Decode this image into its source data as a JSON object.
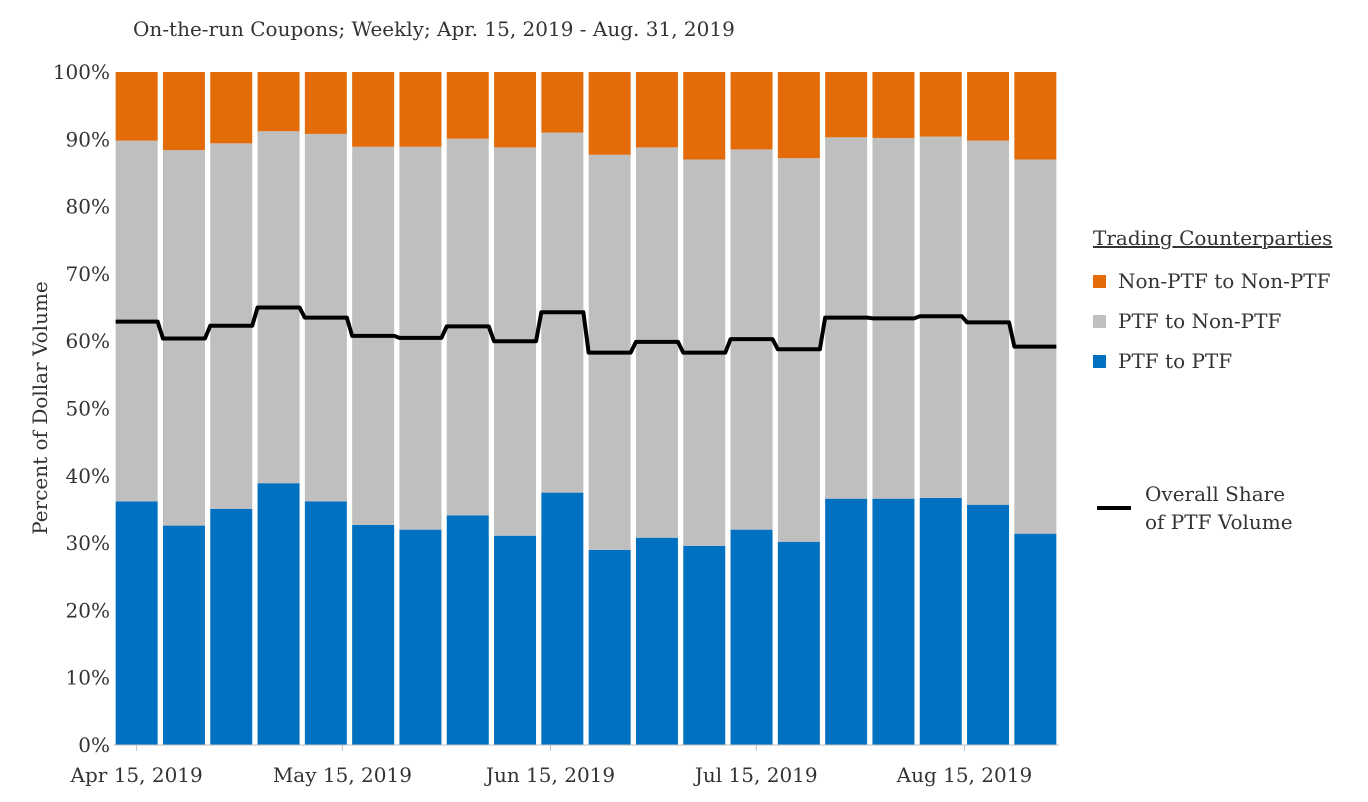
{
  "chart_data": {
    "type": "bar",
    "stacked": true,
    "subtitle": "On-the-run Coupons; Weekly; Apr. 15, 2019 - Aug. 31, 2019",
    "ylabel": "Percent of Dollar Volume",
    "xlabel": "",
    "ylim": [
      0,
      100
    ],
    "y_ticks": [
      "0%",
      "10%",
      "20%",
      "30%",
      "40%",
      "50%",
      "60%",
      "70%",
      "80%",
      "90%",
      "100%"
    ],
    "x_tick_labels": [
      {
        "label": "Apr 15, 2019",
        "at": 0
      },
      {
        "label": "May 15, 2019",
        "at": 4.35
      },
      {
        "label": "Jun 15, 2019",
        "at": 8.75
      },
      {
        "label": "Jul 15, 2019",
        "at": 13.1
      },
      {
        "label": "Aug 15, 2019",
        "at": 17.5
      }
    ],
    "categories": [
      "2019-04-15",
      "2019-04-22",
      "2019-04-29",
      "2019-05-06",
      "2019-05-13",
      "2019-05-20",
      "2019-05-27",
      "2019-06-03",
      "2019-06-10",
      "2019-06-17",
      "2019-06-24",
      "2019-07-01",
      "2019-07-08",
      "2019-07-15",
      "2019-07-22",
      "2019-07-29",
      "2019-08-05",
      "2019-08-12",
      "2019-08-19",
      "2019-08-26"
    ],
    "series": [
      {
        "name": "PTF to PTF",
        "color": "#0070c0",
        "values": [
          36.2,
          32.6,
          35.1,
          38.9,
          36.2,
          32.7,
          32.0,
          34.1,
          31.1,
          37.5,
          29.0,
          30.8,
          29.6,
          32.0,
          30.2,
          36.6,
          36.6,
          36.7,
          35.7,
          31.4
        ]
      },
      {
        "name": "PTF to Non-PTF",
        "color": "#bfbfbf",
        "values": [
          53.6,
          55.8,
          54.3,
          52.3,
          54.6,
          56.2,
          56.9,
          56.0,
          57.7,
          53.5,
          58.7,
          58.0,
          57.4,
          56.5,
          57.0,
          53.7,
          53.6,
          53.7,
          54.1,
          55.6
        ]
      },
      {
        "name": "Non-PTF to Non-PTF",
        "color": "#e36c09",
        "values": [
          10.2,
          11.6,
          10.6,
          8.8,
          9.2,
          11.1,
          11.1,
          9.9,
          11.2,
          9.0,
          12.3,
          11.2,
          13.0,
          11.5,
          12.8,
          9.7,
          9.8,
          9.6,
          10.2,
          13.0
        ]
      }
    ],
    "line_series": {
      "name": "Overall Share of PTF Volume",
      "color": "#000000",
      "values": [
        62.9,
        60.4,
        62.3,
        65.0,
        63.5,
        60.8,
        60.5,
        62.2,
        60.0,
        64.3,
        58.3,
        59.9,
        58.3,
        60.3,
        58.8,
        63.5,
        63.4,
        63.7,
        62.8,
        59.2
      ]
    },
    "legend": {
      "title": "Trading Counterparties",
      "items": [
        {
          "label": "Non-PTF to Non-PTF",
          "color": "#e36c09"
        },
        {
          "label": "PTF to Non-PTF",
          "color": "#bfbfbf"
        },
        {
          "label": "PTF to PTF",
          "color": "#0070c0"
        }
      ],
      "line_label_1": "Overall Share",
      "line_label_2": "of PTF Volume",
      "placement": "right"
    }
  }
}
